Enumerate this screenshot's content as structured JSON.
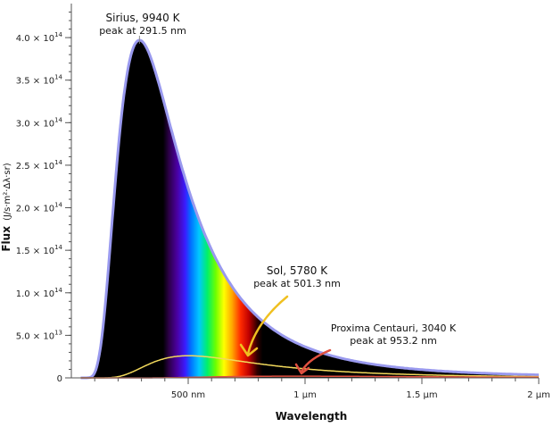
{
  "chart_data": {
    "type": "line",
    "title": "",
    "xlabel": "Wavelength",
    "ylabel": "Flux",
    "ylabel_units": "(J/s·m²·Δλ·sr)",
    "xlim_nm": [
      0,
      2000
    ],
    "ylim": [
      0,
      440000000000000.0
    ],
    "x_ticks": [
      {
        "value": 500,
        "label": "500 nm"
      },
      {
        "value": 1000,
        "label": "1 μm"
      },
      {
        "value": 1500,
        "label": "1.5 μm"
      },
      {
        "value": 2000,
        "label": "2 μm"
      }
    ],
    "y_ticks": [
      {
        "value": 0,
        "mant": "0",
        "exp": ""
      },
      {
        "value": 50000000000000.0,
        "mant": "5.0 × 10",
        "exp": "13"
      },
      {
        "value": 100000000000000.0,
        "mant": "1.0 × 10",
        "exp": "14"
      },
      {
        "value": 150000000000000.0,
        "mant": "1.5 × 10",
        "exp": "14"
      },
      {
        "value": 200000000000000.0,
        "mant": "2.0 × 10",
        "exp": "14"
      },
      {
        "value": 250000000000000.0,
        "mant": "2.5 × 10",
        "exp": "14"
      },
      {
        "value": 300000000000000.0,
        "mant": "3.0 × 10",
        "exp": "14"
      },
      {
        "value": 350000000000000.0,
        "mant": "3.5 × 10",
        "exp": "14"
      },
      {
        "value": 400000000000000.0,
        "mant": "4.0 × 10",
        "exp": "14"
      }
    ],
    "series": [
      {
        "name": "Sirius",
        "temperature_K": 9940,
        "peak_nm": 291.5,
        "peak_flux": 397000000000000.0,
        "label": "Sirius, 9940 K",
        "peak_label": "peak at 291.5 nm",
        "color": "#9999ee"
      },
      {
        "name": "Sol",
        "temperature_K": 5780,
        "peak_nm": 501.3,
        "peak_flux": 26000000000000.0,
        "label": "Sol, 5780 K",
        "peak_label": "peak at 501.3 nm",
        "color": "#f2d95c"
      },
      {
        "name": "Proxima Centauri",
        "temperature_K": 3040,
        "peak_nm": 953.2,
        "peak_flux": 2000000000000.0,
        "label": "Proxima Centauri, 3040 K",
        "peak_label": "peak at 953.2 nm",
        "color": "#e05040"
      }
    ],
    "arrow_colors": {
      "Sol": "#f0c020",
      "Proxima Centauri": "#e05040"
    },
    "background_fill": "#000000",
    "axis_color": "#555555"
  }
}
